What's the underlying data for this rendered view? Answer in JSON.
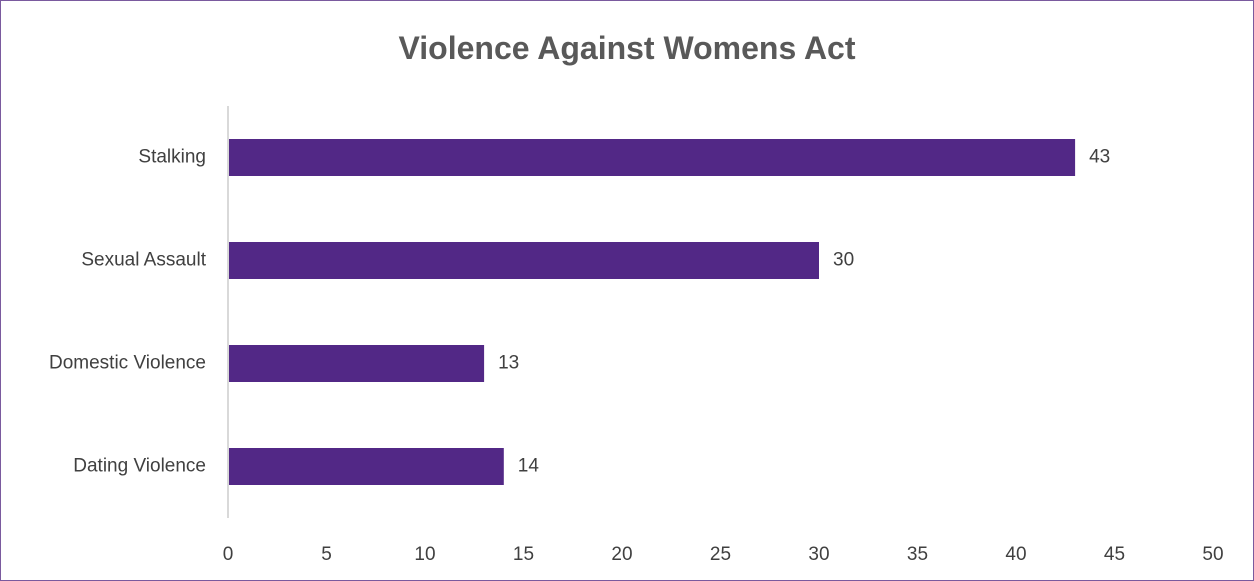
{
  "chart_data": {
    "type": "bar",
    "orientation": "horizontal",
    "title": "Violence Against Womens Act",
    "categories": [
      "Stalking",
      "Sexual Assault",
      "Domestic Violence",
      "Dating Violence"
    ],
    "values": [
      43,
      30,
      13,
      14
    ],
    "xlim": [
      0,
      50
    ],
    "xticks": [
      0,
      5,
      10,
      15,
      20,
      25,
      30,
      35,
      40,
      45,
      50
    ],
    "xlabel": "",
    "ylabel": "",
    "grid": false,
    "legend": "none",
    "data_labels": true,
    "bar_color": "#522886",
    "frame_color": "#7a5a9e"
  }
}
